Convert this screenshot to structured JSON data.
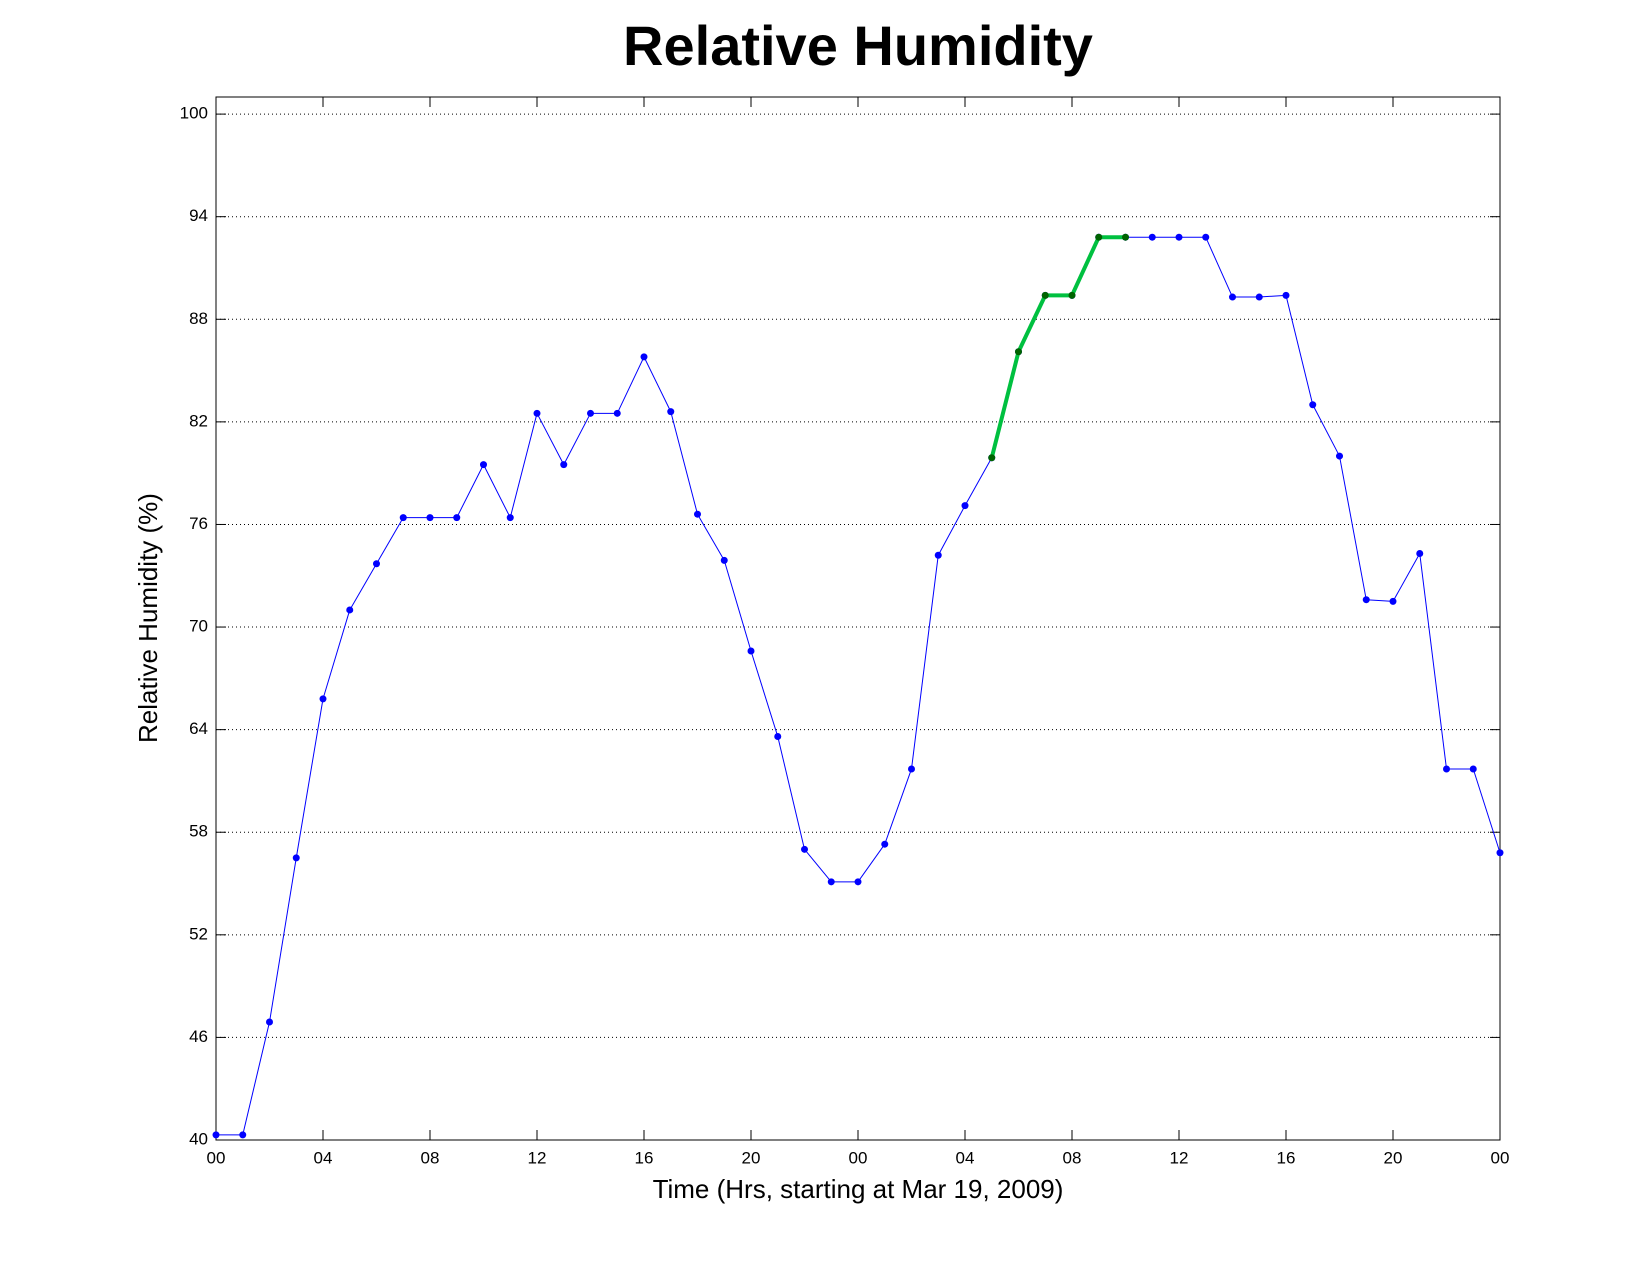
{
  "chart_data": {
    "type": "line",
    "title": "Relative Humidity",
    "x_label": "Time (Hrs, starting at Mar 19, 2009)",
    "y_label": "Relative Humidity (%)",
    "xlim": [
      0,
      48
    ],
    "ylim": [
      40,
      101
    ],
    "xticks": [
      {
        "value": 0,
        "label": "00"
      },
      {
        "value": 4,
        "label": "04"
      },
      {
        "value": 8,
        "label": "08"
      },
      12,
      16,
      20,
      {
        "value": 24,
        "label": "00"
      },
      {
        "value": 28,
        "label": "04"
      },
      {
        "value": 32,
        "label": "08"
      },
      {
        "value": 36,
        "label": "12"
      },
      {
        "value": 40,
        "label": "16"
      },
      {
        "value": 44,
        "label": "20"
      },
      {
        "value": 48,
        "label": "00"
      }
    ],
    "yticks": [
      40,
      46,
      52,
      58,
      64,
      70,
      76,
      82,
      88,
      94,
      100
    ],
    "grid": true,
    "series": [
      {
        "color": "#0000ff",
        "marker_color": "#0000ff",
        "line_width": 1,
        "x": [
          0,
          1,
          2,
          3,
          4,
          5,
          6,
          7,
          8,
          9,
          10,
          11,
          12,
          13,
          14,
          15,
          16,
          17,
          18,
          19,
          20,
          21,
          22,
          23,
          24,
          25,
          26,
          27,
          28,
          29,
          30,
          31,
          32,
          33,
          34,
          35,
          36,
          37,
          38,
          39,
          40,
          41,
          42,
          43,
          44,
          45,
          46,
          47,
          48
        ],
        "values": [
          40.3,
          40.3,
          46.9,
          56.5,
          65.8,
          71.0,
          73.7,
          76.4,
          76.4,
          76.4,
          79.5,
          76.4,
          82.5,
          79.5,
          82.5,
          82.5,
          85.8,
          82.6,
          76.6,
          73.9,
          68.6,
          63.6,
          57.0,
          55.1,
          55.1,
          57.3,
          61.7,
          74.2,
          77.1,
          79.9,
          86.1,
          89.4,
          89.4,
          92.8,
          92.8,
          92.8,
          92.8,
          92.8,
          89.3,
          89.3,
          89.4,
          83.0,
          80.0,
          71.6,
          71.5,
          74.3,
          61.7,
          61.7,
          56.8
        ]
      },
      {
        "color": "#00c040",
        "marker_color": "#006400",
        "line_width": 4,
        "x": [
          29,
          30,
          31,
          32,
          33,
          34
        ],
        "values": [
          79.9,
          86.1,
          89.4,
          89.4,
          92.8,
          92.8
        ]
      }
    ]
  }
}
